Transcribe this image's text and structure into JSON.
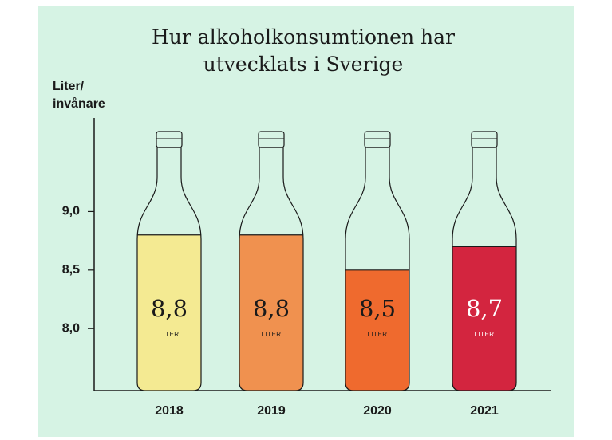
{
  "chart_data": {
    "type": "bottle",
    "title": "Hur alkoholkonsumtionen har utvecklats i Sverige",
    "y_label": "Liter/ invånare",
    "unit_label": "LITER",
    "categories": [
      "2018",
      "2019",
      "2020",
      "2021"
    ],
    "values": [
      8.8,
      8.8,
      8.5,
      8.7
    ],
    "value_labels": [
      "8,8",
      "8,8",
      "8,5",
      "8,7"
    ],
    "colors": [
      "#f4ea92",
      "#f0914f",
      "#ef6a2e",
      "#d3253f"
    ],
    "value_label_colors": [
      "#1a1a1a",
      "#1a1a1a",
      "#1a1a1a",
      "#ffffff"
    ],
    "ylim": [
      7.47,
      9.8
    ],
    "yticks": [
      {
        "value": 8.0,
        "label": "8,0"
      },
      {
        "value": 8.5,
        "label": "8,5"
      },
      {
        "value": 9.0,
        "label": "9,0"
      }
    ],
    "background": "#d6f3e4"
  }
}
